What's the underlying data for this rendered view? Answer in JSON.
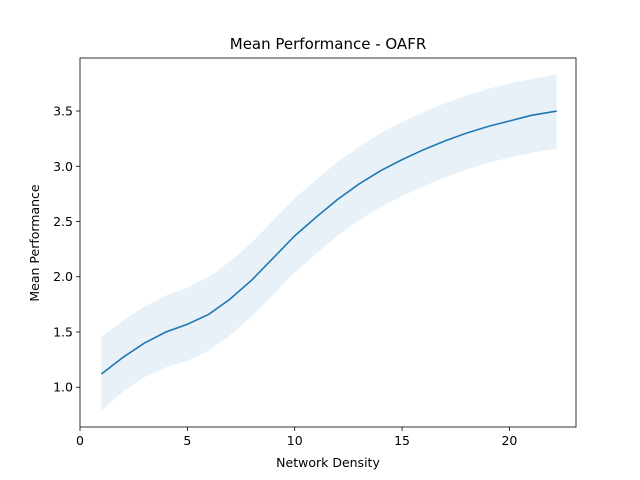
{
  "chart_data": {
    "type": "line",
    "title": "Mean Performance - OAFR",
    "xlabel": "Network Density",
    "ylabel": "Mean Performance",
    "xlim": [
      0,
      23.1
    ],
    "ylim": [
      0.64,
      3.98
    ],
    "xticks": [
      0,
      5,
      10,
      15,
      20
    ],
    "yticks": [
      1.0,
      1.5,
      2.0,
      2.5,
      3.0,
      3.5
    ],
    "xtick_labels": [
      "0",
      "5",
      "10",
      "15",
      "20"
    ],
    "ytick_labels": [
      "1.0",
      "1.5",
      "2.0",
      "2.5",
      "3.0",
      "3.5"
    ],
    "grid": false,
    "line_color": "#1f77b4",
    "band_color": "#1f77b4",
    "band_opacity": 0.1,
    "series": [
      {
        "x": [
          1,
          2,
          3,
          4,
          5,
          6,
          7,
          8,
          9,
          10,
          11,
          12,
          13,
          14,
          15,
          16,
          17,
          18,
          19,
          20,
          21,
          22.2
        ],
        "values": [
          1.12,
          1.27,
          1.4,
          1.5,
          1.57,
          1.66,
          1.8,
          1.97,
          2.17,
          2.37,
          2.54,
          2.7,
          2.84,
          2.96,
          3.06,
          3.15,
          3.23,
          3.3,
          3.36,
          3.41,
          3.46,
          3.5
        ],
        "lower": [
          0.79,
          0.96,
          1.09,
          1.18,
          1.24,
          1.33,
          1.47,
          1.64,
          1.84,
          2.04,
          2.21,
          2.37,
          2.51,
          2.63,
          2.73,
          2.82,
          2.9,
          2.97,
          3.03,
          3.08,
          3.12,
          3.16
        ],
        "upper": [
          1.46,
          1.6,
          1.73,
          1.83,
          1.9,
          2.0,
          2.14,
          2.31,
          2.51,
          2.71,
          2.88,
          3.04,
          3.18,
          3.3,
          3.4,
          3.49,
          3.57,
          3.64,
          3.7,
          3.75,
          3.79,
          3.83
        ]
      }
    ]
  }
}
